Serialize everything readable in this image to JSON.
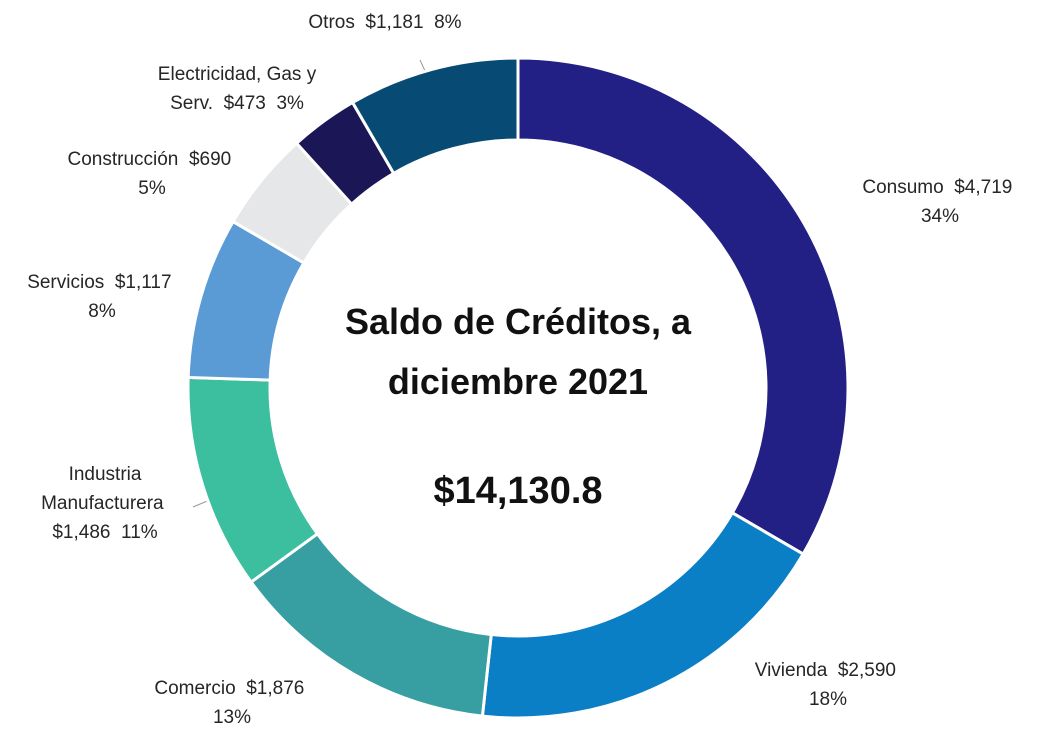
{
  "chart_data": {
    "type": "donut",
    "title": "Saldo de Créditos, a diciembre 2021",
    "total_label": "$14,130.8",
    "categories": [
      "Consumo",
      "Vivienda",
      "Comercio",
      "Industria Manufacturera",
      "Servicios",
      "Construcción",
      "Electricidad, Gas y Serv.",
      "Otros"
    ],
    "values": [
      4719,
      2590,
      1876,
      1486,
      1117,
      690,
      473,
      1181
    ],
    "value_labels": [
      "$4,719",
      "$2,590",
      "$1,876",
      "$1,486",
      "$1,117",
      "$690",
      "$473",
      "$1,181"
    ],
    "percent_labels": [
      "34%",
      "18%",
      "13%",
      "11%",
      "8%",
      "5%",
      "3%",
      "8%"
    ],
    "colors": [
      "#232085",
      "#0a7fc6",
      "#379fa2",
      "#3cbf9f",
      "#5b9bd5",
      "#e6e7e9",
      "#1b1656",
      "#074b75"
    ]
  }
}
